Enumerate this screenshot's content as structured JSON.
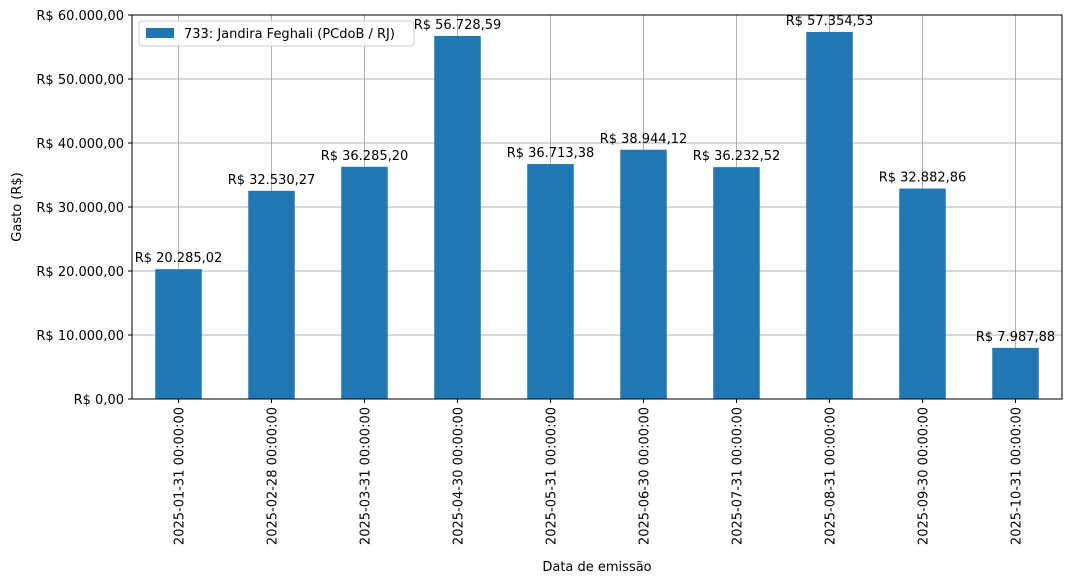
{
  "colors": {
    "bar": "#1f77b4",
    "grid": "#b0b0b0",
    "axis": "#000000"
  },
  "chart_data": {
    "type": "bar",
    "categories": [
      "2025-01-31 00:00:00",
      "2025-02-28 00:00:00",
      "2025-03-31 00:00:00",
      "2025-04-30 00:00:00",
      "2025-05-31 00:00:00",
      "2025-06-30 00:00:00",
      "2025-07-31 00:00:00",
      "2025-08-31 00:00:00",
      "2025-09-30 00:00:00",
      "2025-10-31 00:00:00"
    ],
    "series": [
      {
        "name": "733: Jandira Feghali (PCdoB / RJ)",
        "values": [
          20285.02,
          32530.27,
          36285.2,
          56728.59,
          36713.38,
          38944.12,
          36232.52,
          57354.53,
          32882.86,
          7987.88
        ],
        "labels": [
          "R$ 20.285,02",
          "R$ 32.530,27",
          "R$ 36.285,20",
          "R$ 56.728,59",
          "R$ 36.713,38",
          "R$ 38.944,12",
          "R$ 36.232,52",
          "R$ 57.354,53",
          "R$ 32.882,86",
          "R$ 7.987,88"
        ]
      }
    ],
    "title": "",
    "xlabel": "Data de emissão",
    "ylabel": "Gasto (R$)",
    "ylim": [
      0,
      60000
    ],
    "yticks": [
      0,
      10000,
      20000,
      30000,
      40000,
      50000,
      60000
    ],
    "ytick_labels": [
      "R$ 0,00",
      "R$ 10.000,00",
      "R$ 20.000,00",
      "R$ 30.000,00",
      "R$ 40.000,00",
      "R$ 50.000,00",
      "R$ 60.000,00"
    ],
    "grid": true,
    "legend_position": "top-left"
  }
}
